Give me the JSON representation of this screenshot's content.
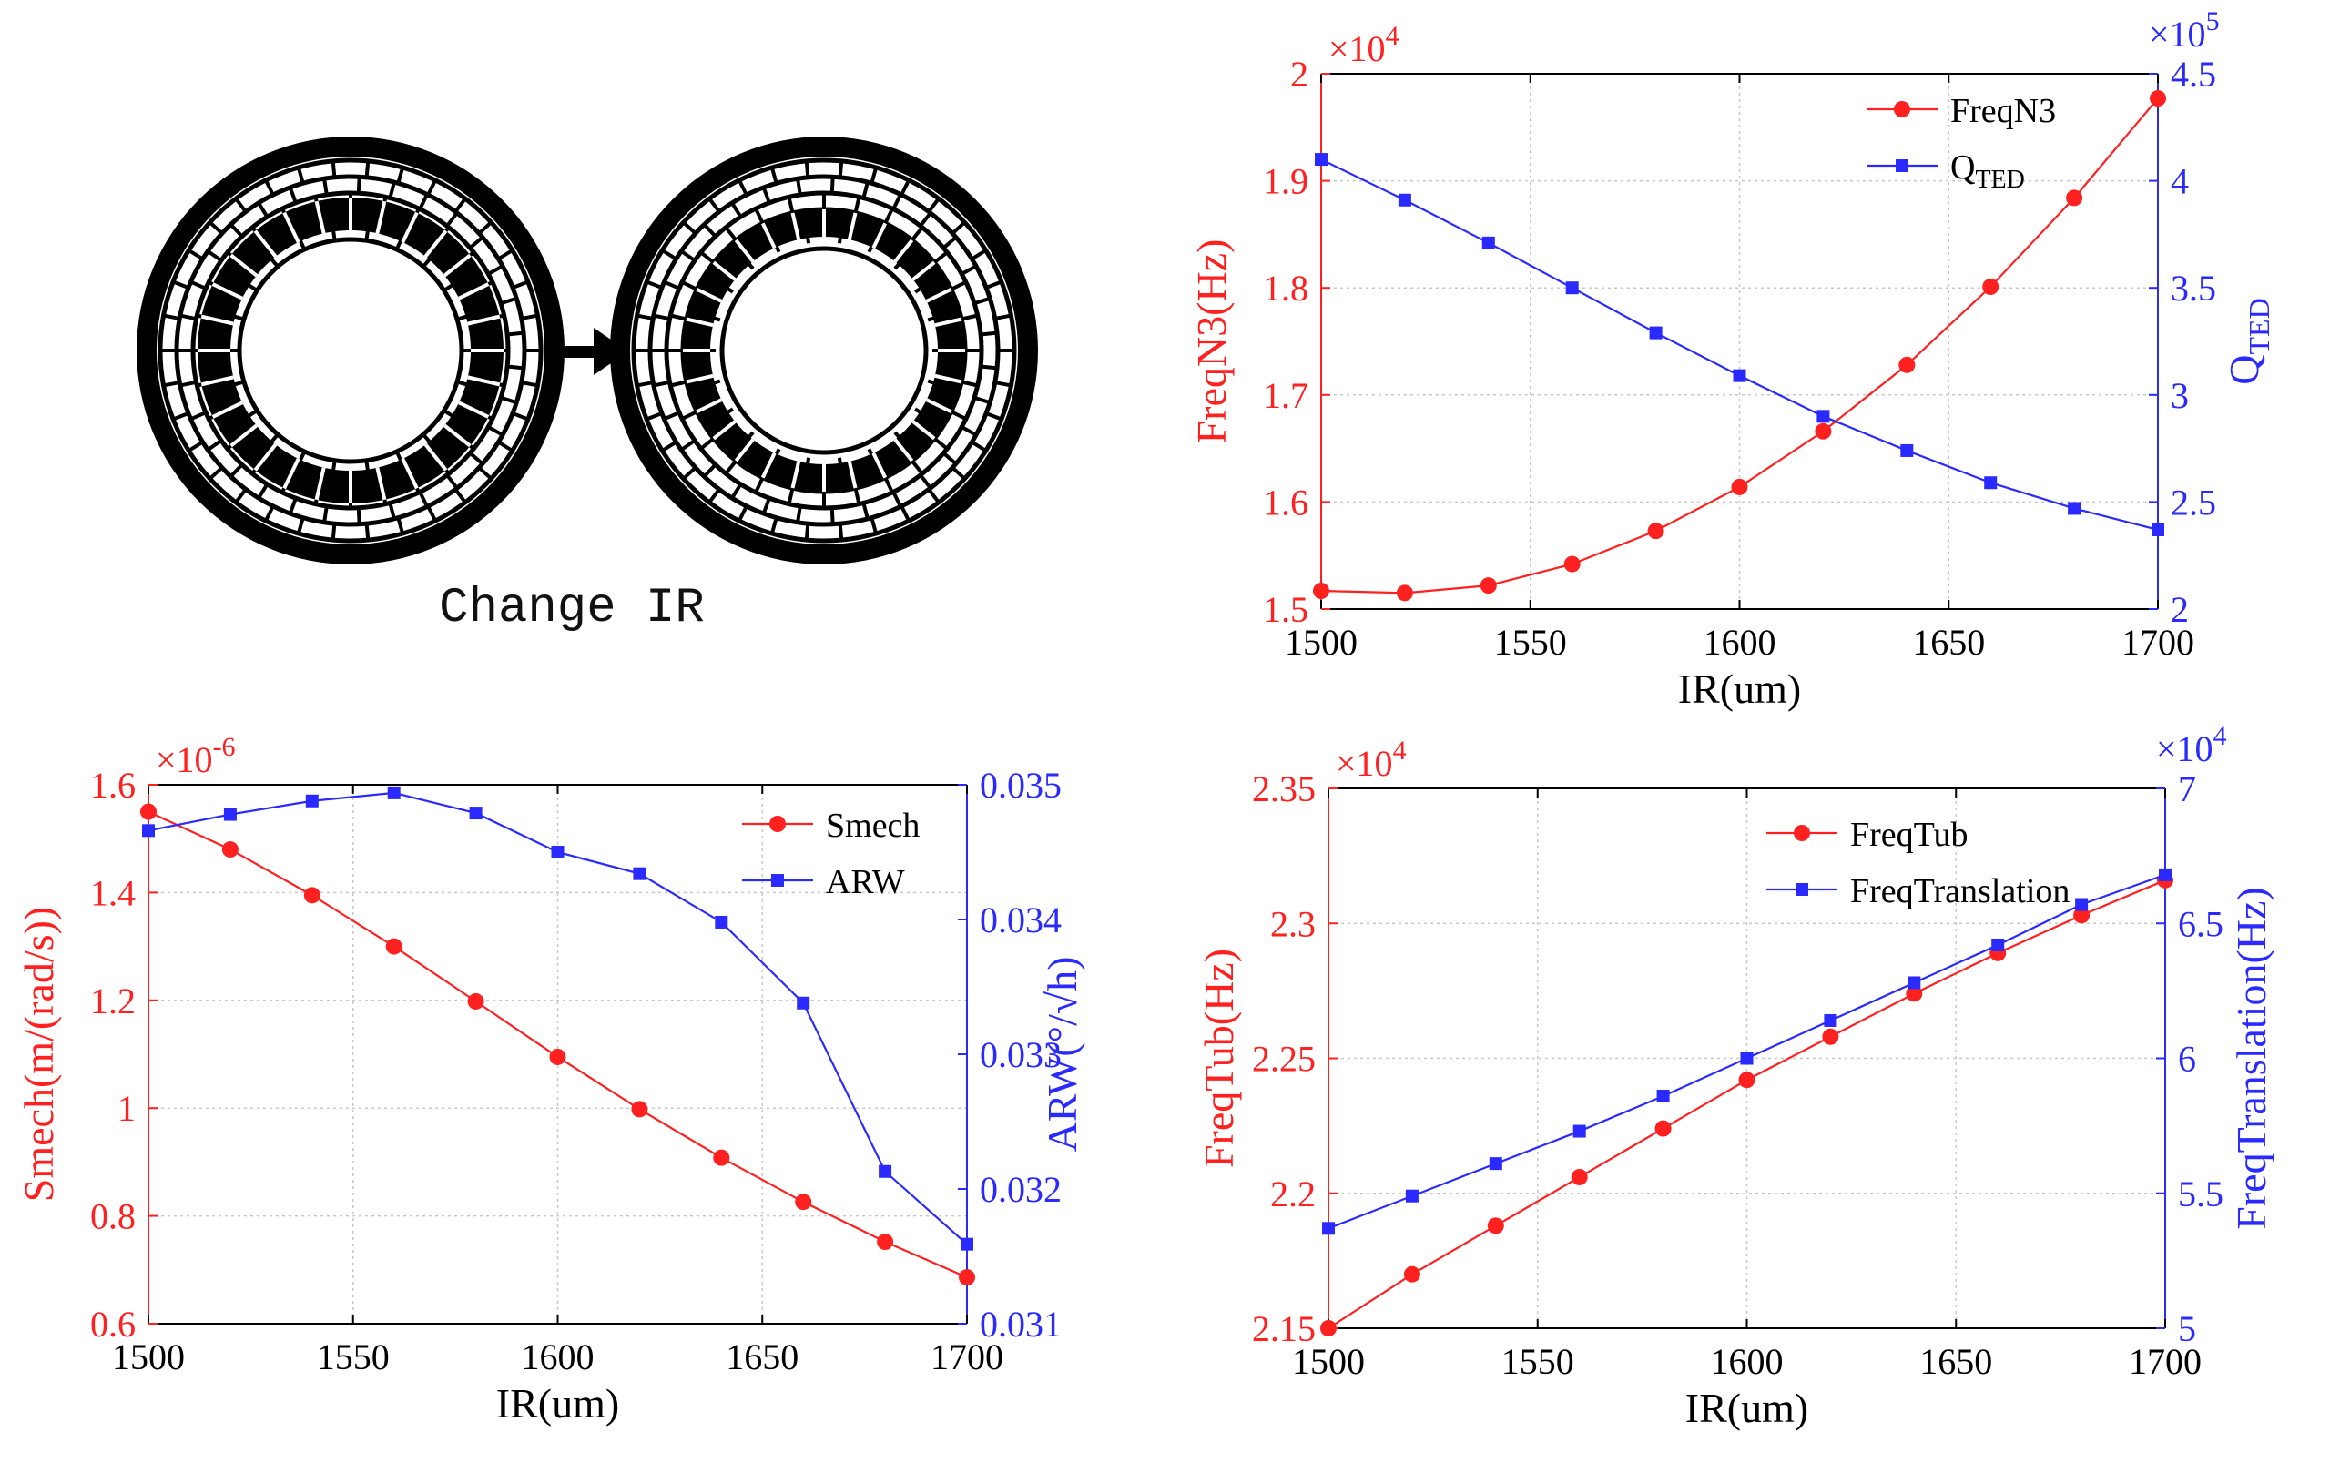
{
  "diagram": {
    "caption": "Change IR",
    "arrow_color": "#000000",
    "ring_color": "#000000"
  },
  "chart_data": [
    {
      "type": "line",
      "id": "chart-tr",
      "xlabel": "IR(um)",
      "x": [
        1500,
        1520,
        1540,
        1560,
        1580,
        1600,
        1620,
        1640,
        1660,
        1680,
        1700
      ],
      "xlim": [
        1500,
        1700
      ],
      "xticks": [
        "1500",
        "1550",
        "1600",
        "1650",
        "1700"
      ],
      "xtick_values": [
        1500,
        1550,
        1600,
        1650,
        1700
      ],
      "grid": true,
      "legend_position": "top-right",
      "left_axis": {
        "label": "FreqN3(Hz)",
        "color": "#ff2020",
        "ylim": [
          1.5,
          2.0
        ],
        "tick_values": [
          1.5,
          1.6,
          1.7,
          1.8,
          1.9,
          2.0
        ],
        "tick_labels": [
          "1.5",
          "1.6",
          "1.7",
          "1.8",
          "1.9",
          "2"
        ],
        "exponent_base": "×10",
        "exponent_power": "4"
      },
      "right_axis": {
        "label_main": "Q",
        "label_sub": "TED",
        "color": "#2a2aff",
        "ylim": [
          2.0,
          4.5
        ],
        "tick_values": [
          2.0,
          2.5,
          3.0,
          3.5,
          4.0,
          4.5
        ],
        "tick_labels": [
          "2",
          "2.5",
          "3",
          "3.5",
          "4",
          "4.5"
        ],
        "exponent_base": "×10",
        "exponent_power": "5"
      },
      "series": [
        {
          "name": "FreqN3",
          "name_sub": "",
          "axis": "left",
          "marker": "circle",
          "color": "#ff2020",
          "values": [
            1.517,
            1.515,
            1.522,
            1.542,
            1.573,
            1.614,
            1.666,
            1.728,
            1.801,
            1.884,
            1.977
          ]
        },
        {
          "name": "Q",
          "name_sub": "TED",
          "axis": "right",
          "marker": "square",
          "color": "#2a2aff",
          "values": [
            4.1,
            3.91,
            3.71,
            3.5,
            3.29,
            3.09,
            2.9,
            2.74,
            2.59,
            2.47,
            2.37
          ]
        }
      ]
    },
    {
      "type": "line",
      "id": "chart-bl",
      "xlabel": "IR(um)",
      "x": [
        1500,
        1520,
        1540,
        1560,
        1580,
        1600,
        1620,
        1640,
        1660,
        1680,
        1700
      ],
      "xlim": [
        1500,
        1700
      ],
      "xticks": [
        "1500",
        "1550",
        "1600",
        "1650",
        "1700"
      ],
      "xtick_values": [
        1500,
        1550,
        1600,
        1650,
        1700
      ],
      "grid": true,
      "legend_position": "top-right",
      "left_axis": {
        "label": "Smech(m/(rad/s))",
        "color": "#ff2020",
        "ylim": [
          0.6,
          1.6
        ],
        "tick_values": [
          0.6,
          0.8,
          1.0,
          1.2,
          1.4,
          1.6
        ],
        "tick_labels": [
          "0.6",
          "0.8",
          "1",
          "1.2",
          "1.4",
          "1.6"
        ],
        "exponent_base": "×10",
        "exponent_power": "-6"
      },
      "right_axis": {
        "label_main": "ARW(°/√h)",
        "label_sub": "",
        "color": "#2a2aff",
        "ylim": [
          0.031,
          0.035
        ],
        "tick_values": [
          0.031,
          0.032,
          0.033,
          0.034,
          0.035
        ],
        "tick_labels": [
          "0.031",
          "0.032",
          "0.033",
          "0.034",
          "0.035"
        ],
        "exponent_base": "",
        "exponent_power": ""
      },
      "series": [
        {
          "name": "Smech",
          "name_sub": "",
          "axis": "left",
          "marker": "circle",
          "color": "#ff2020",
          "values": [
            1.55,
            1.48,
            1.395,
            1.3,
            1.198,
            1.095,
            0.998,
            0.908,
            0.826,
            0.752,
            0.686
          ]
        },
        {
          "name": "ARW",
          "name_sub": "",
          "axis": "right",
          "marker": "square",
          "color": "#2a2aff",
          "values": [
            0.03466,
            0.03478,
            0.03488,
            0.03494,
            0.03479,
            0.0345,
            0.03434,
            0.03398,
            0.03338,
            0.03213,
            0.03159
          ]
        }
      ]
    },
    {
      "type": "line",
      "id": "chart-br",
      "xlabel": "IR(um)",
      "x": [
        1500,
        1520,
        1540,
        1560,
        1580,
        1600,
        1620,
        1640,
        1660,
        1680,
        1700
      ],
      "xlim": [
        1500,
        1700
      ],
      "xticks": [
        "1500",
        "1550",
        "1600",
        "1650",
        "1700"
      ],
      "xtick_values": [
        1500,
        1550,
        1600,
        1650,
        1700
      ],
      "grid": true,
      "legend_position": "top-left",
      "left_axis": {
        "label": "FreqTub(Hz)",
        "color": "#ff2020",
        "ylim": [
          2.15,
          2.35
        ],
        "tick_values": [
          2.15,
          2.2,
          2.25,
          2.3,
          2.35
        ],
        "tick_labels": [
          "2.15",
          "2.2",
          "2.25",
          "2.3",
          "2.35"
        ],
        "exponent_base": "×10",
        "exponent_power": "4"
      },
      "right_axis": {
        "label_main": "FreqTranslation(Hz)",
        "label_sub": "",
        "color": "#2a2aff",
        "ylim": [
          5.0,
          7.0
        ],
        "tick_values": [
          5.0,
          5.5,
          6.0,
          6.5,
          7.0
        ],
        "tick_labels": [
          "5",
          "5.5",
          "6",
          "6.5",
          "7"
        ],
        "exponent_base": "×10",
        "exponent_power": "4"
      },
      "series": [
        {
          "name": "FreqTub",
          "name_sub": "",
          "axis": "left",
          "marker": "circle",
          "color": "#ff2020",
          "values": [
            2.15,
            2.17,
            2.188,
            2.206,
            2.224,
            2.242,
            2.258,
            2.274,
            2.289,
            2.303,
            2.316
          ]
        },
        {
          "name": "FreqTranslation",
          "name_sub": "",
          "axis": "right",
          "marker": "square",
          "color": "#2a2aff",
          "values": [
            5.37,
            5.49,
            5.61,
            5.73,
            5.86,
            6.0,
            6.14,
            6.28,
            6.42,
            6.57,
            6.68
          ]
        }
      ]
    }
  ]
}
